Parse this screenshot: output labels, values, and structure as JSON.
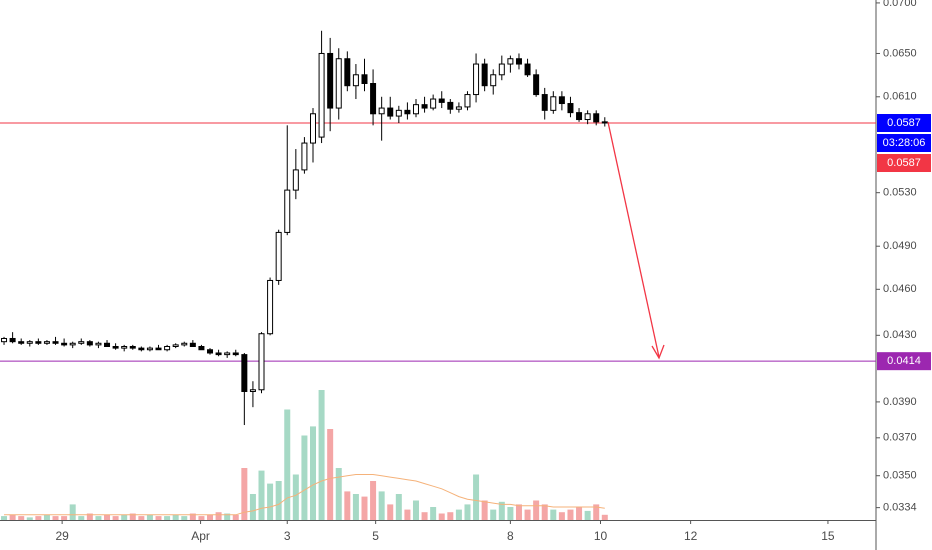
{
  "chart_data": {
    "type": "candlestick",
    "log_scale": true,
    "ylim": [
      0.0328,
      0.0703
    ],
    "yticks": [
      {
        "value": 0.07,
        "label": "0.0700"
      },
      {
        "value": 0.065,
        "label": "0.0650"
      },
      {
        "value": 0.061,
        "label": "0.0610"
      },
      {
        "value": 0.053,
        "label": "0.0530"
      },
      {
        "value": 0.049,
        "label": "0.0490"
      },
      {
        "value": 0.046,
        "label": "0.0460"
      },
      {
        "value": 0.043,
        "label": "0.0430"
      },
      {
        "value": 0.039,
        "label": "0.0390"
      },
      {
        "value": 0.037,
        "label": "0.0370"
      },
      {
        "value": 0.035,
        "label": "0.0350"
      },
      {
        "value": 0.0334,
        "label": "0.0334"
      }
    ],
    "xlim": [
      -0.47,
      101.6
    ],
    "xticks": [
      {
        "value": 6.77,
        "label": "29"
      },
      {
        "value": 22.9,
        "label": "Apr"
      },
      {
        "value": 33.0,
        "label": "3"
      },
      {
        "value": 43.3,
        "label": "5"
      },
      {
        "value": 59.0,
        "label": "8"
      },
      {
        "value": 69.5,
        "label": "10"
      },
      {
        "value": 80.0,
        "label": "12"
      },
      {
        "value": 96.0,
        "label": "15"
      }
    ],
    "up_color": "#ffffff",
    "down_color": "#000000",
    "volume_up_color": "#a6d9c5",
    "volume_down_color": "#f4a6a6",
    "volume_ma_color": "#f5b27a",
    "open": [
      0.0426,
      0.0428,
      0.0426,
      0.0425,
      0.0426,
      0.0425,
      0.0426,
      0.0425,
      0.0424,
      0.0425,
      0.0426,
      0.0424,
      0.0425,
      0.0423,
      0.0422,
      0.0423,
      0.0422,
      0.0421,
      0.0422,
      0.0421,
      0.0423,
      0.0424,
      0.0425,
      0.0423,
      0.0421,
      0.0419,
      0.0418,
      0.0419,
      0.0418,
      0.0396,
      0.0397,
      0.0431,
      0.0466,
      0.05,
      0.0532,
      0.0548,
      0.057,
      0.0575,
      0.065,
      0.06,
      0.0645,
      0.062,
      0.063,
      0.0622,
      0.0595,
      0.06,
      0.0593,
      0.0598,
      0.0595,
      0.0603,
      0.06,
      0.0608,
      0.0605,
      0.0599,
      0.0601,
      0.0612,
      0.064,
      0.062,
      0.063,
      0.064,
      0.0645,
      0.064,
      0.063,
      0.0612,
      0.0598,
      0.061,
      0.0604,
      0.0596,
      0.059,
      0.0595,
      0.0588
    ],
    "high": [
      0.0429,
      0.0432,
      0.0428,
      0.0427,
      0.0428,
      0.0427,
      0.0429,
      0.0428,
      0.0426,
      0.0428,
      0.0427,
      0.0426,
      0.0427,
      0.0425,
      0.0424,
      0.0424,
      0.0423,
      0.0423,
      0.0424,
      0.0424,
      0.0425,
      0.0426,
      0.0427,
      0.0424,
      0.0422,
      0.0421,
      0.042,
      0.0421,
      0.0419,
      0.0402,
      0.0432,
      0.0468,
      0.0502,
      0.0585,
      0.0565,
      0.0575,
      0.06,
      0.0672,
      0.0665,
      0.0655,
      0.0652,
      0.064,
      0.0645,
      0.0635,
      0.061,
      0.061,
      0.0602,
      0.0605,
      0.0608,
      0.061,
      0.0612,
      0.0615,
      0.0608,
      0.0605,
      0.0615,
      0.065,
      0.0645,
      0.0635,
      0.0648,
      0.0648,
      0.065,
      0.0645,
      0.0635,
      0.0618,
      0.0615,
      0.0615,
      0.061,
      0.06,
      0.0598,
      0.0598,
      0.0592
    ],
    "low": [
      0.0424,
      0.0425,
      0.0424,
      0.0423,
      0.0424,
      0.0424,
      0.0424,
      0.0423,
      0.0422,
      0.0424,
      0.0423,
      0.0422,
      0.0423,
      0.0421,
      0.042,
      0.0421,
      0.042,
      0.042,
      0.0421,
      0.042,
      0.0422,
      0.0423,
      0.0423,
      0.0421,
      0.0418,
      0.0417,
      0.0416,
      0.0417,
      0.0377,
      0.0387,
      0.0395,
      0.043,
      0.0463,
      0.0498,
      0.0525,
      0.0545,
      0.0554,
      0.057,
      0.058,
      0.059,
      0.0615,
      0.0608,
      0.0615,
      0.0585,
      0.0572,
      0.059,
      0.0587,
      0.059,
      0.0592,
      0.0596,
      0.0598,
      0.06,
      0.0595,
      0.0596,
      0.0598,
      0.0605,
      0.0615,
      0.0612,
      0.0625,
      0.0632,
      0.0635,
      0.0628,
      0.061,
      0.059,
      0.0595,
      0.0598,
      0.0592,
      0.0588,
      0.0586,
      0.0585,
      0.0584
    ],
    "close": [
      0.0428,
      0.0426,
      0.0425,
      0.0426,
      0.0425,
      0.0426,
      0.0425,
      0.0424,
      0.0425,
      0.0426,
      0.0424,
      0.0425,
      0.0423,
      0.0422,
      0.0423,
      0.0422,
      0.0421,
      0.0422,
      0.0421,
      0.0423,
      0.0424,
      0.0425,
      0.0423,
      0.0421,
      0.0419,
      0.0418,
      0.0419,
      0.0418,
      0.0396,
      0.0397,
      0.0431,
      0.0466,
      0.05,
      0.0532,
      0.0548,
      0.057,
      0.0595,
      0.065,
      0.06,
      0.0645,
      0.062,
      0.063,
      0.0622,
      0.0595,
      0.06,
      0.0593,
      0.0598,
      0.0595,
      0.0603,
      0.06,
      0.0608,
      0.0605,
      0.0599,
      0.0601,
      0.0612,
      0.064,
      0.062,
      0.063,
      0.064,
      0.0645,
      0.064,
      0.063,
      0.0612,
      0.0598,
      0.061,
      0.0604,
      0.0596,
      0.059,
      0.0595,
      0.0588,
      0.0587
    ],
    "volume": [
      3,
      4,
      3,
      2,
      3,
      4,
      3,
      3,
      12,
      3,
      5,
      3,
      4,
      3,
      4,
      5,
      3,
      4,
      3,
      3,
      4,
      3,
      5,
      3,
      4,
      6,
      5,
      4,
      40,
      20,
      38,
      28,
      30,
      85,
      35,
      65,
      72,
      100,
      70,
      40,
      22,
      20,
      18,
      30,
      22,
      12,
      20,
      8,
      15,
      6,
      10,
      5,
      6,
      8,
      12,
      35,
      15,
      8,
      14,
      10,
      12,
      8,
      15,
      12,
      8,
      6,
      8,
      10,
      7,
      12,
      4
    ],
    "volume_ma": [
      4,
      4,
      4,
      4,
      4,
      4,
      4,
      4,
      4,
      4,
      4,
      4,
      4,
      4,
      4,
      4,
      4,
      4,
      4,
      4,
      4,
      4,
      4,
      4,
      4,
      4,
      4,
      4,
      6,
      7,
      9,
      10,
      12,
      17,
      19,
      23,
      27,
      30,
      32,
      33,
      34,
      35,
      35,
      35,
      34,
      33,
      32,
      31,
      30,
      28,
      26,
      24,
      21,
      18,
      16,
      15,
      14,
      13,
      12,
      12,
      11,
      11,
      11,
      11,
      10,
      10,
      10,
      10,
      10,
      10,
      9
    ],
    "last_price": 0.0587,
    "last_price_color": "#0000ff",
    "countdown": "03:28:06",
    "horizontal_lines": [
      {
        "value": 0.0587,
        "color": "#f23645"
      },
      {
        "value": 0.0414,
        "color": "#9c27b0"
      }
    ]
  }
}
